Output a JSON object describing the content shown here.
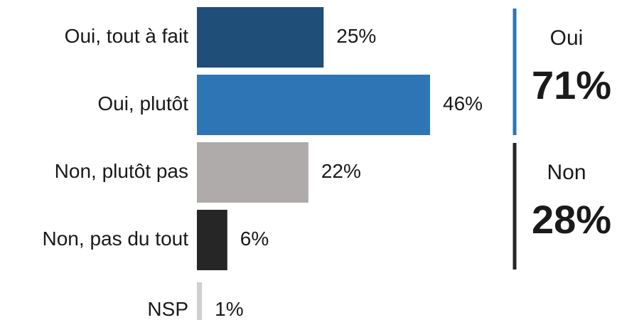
{
  "chart_data": {
    "type": "bar",
    "categories": [
      "Oui, tout à fait",
      "Oui, plutôt",
      "Non, plutôt pas",
      "Non, pas du tout",
      "NSP"
    ],
    "values": [
      25,
      46,
      22,
      6,
      1
    ],
    "value_labels": [
      "25%",
      "46%",
      "22%",
      "6%",
      "1%"
    ],
    "colors": [
      "#1f4e79",
      "#2e75b6",
      "#afabab",
      "#262626",
      "#d0cece"
    ],
    "annotations": [
      {
        "label": "Oui",
        "text": "71%",
        "color": "#2e75b6"
      },
      {
        "label": "Non",
        "text": "28%",
        "color": "#262626"
      }
    ]
  }
}
